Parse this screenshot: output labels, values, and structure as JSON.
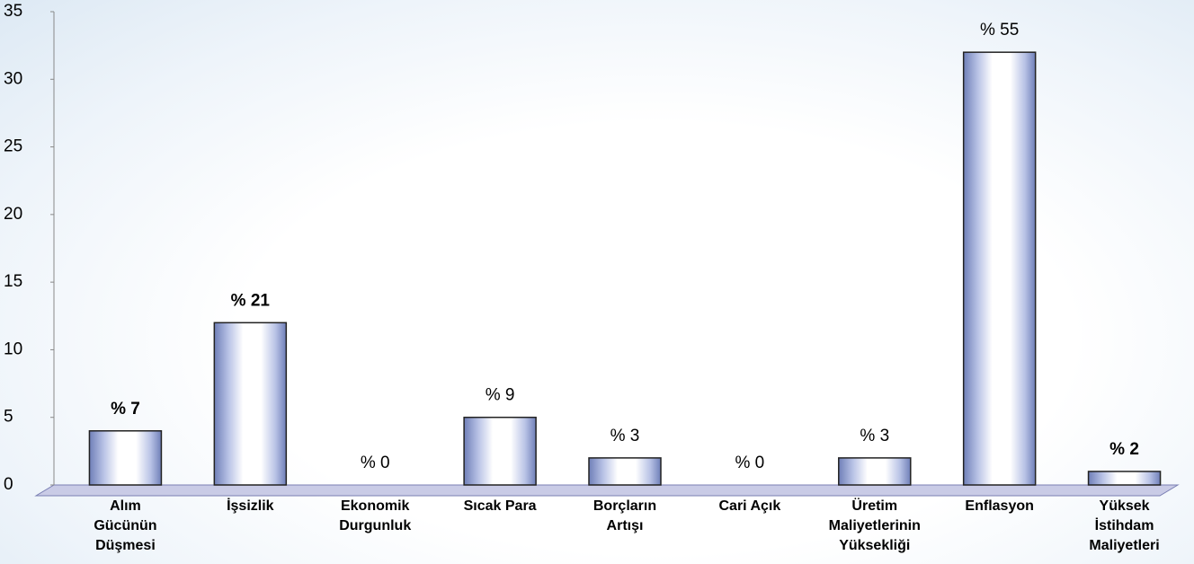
{
  "chart_data": {
    "type": "bar",
    "categories": [
      "Alım Gücünün Düşmesi",
      "İşsizlik",
      "Ekonomik Durgunluk",
      "Sıcak Para",
      "Borçların Artışı",
      "Cari Açık",
      "Üretim Maliyetlerinin Yüksekliği",
      "Enflasyon",
      "Yüksek İstihdam Maliyetleri"
    ],
    "values": [
      4,
      12,
      0,
      5,
      2,
      0,
      2,
      32,
      1
    ],
    "bar_labels": [
      "% 7",
      "% 21",
      "% 0",
      "% 9",
      "% 3",
      "% 0",
      "% 3",
      "% 55",
      "% 2"
    ],
    "label_bold": [
      true,
      true,
      false,
      false,
      false,
      false,
      false,
      false,
      true
    ],
    "color": "#8e9bd0",
    "ylim": [
      0,
      35
    ],
    "yticks": [
      0,
      5,
      10,
      15,
      20,
      25,
      30,
      35
    ],
    "grid": false
  }
}
